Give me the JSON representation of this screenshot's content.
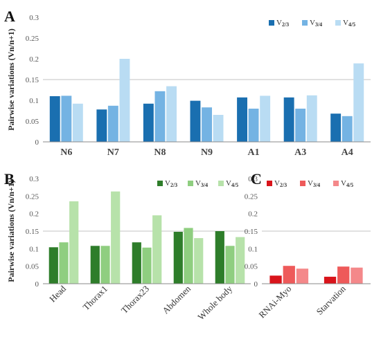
{
  "chart_data": [
    {
      "panel": "A",
      "type": "bar",
      "ylabel": "Pairwise variations (Vn/n+1)",
      "ylim": [
        0,
        0.3
      ],
      "yticks": [
        "0",
        "0.05",
        "0.1",
        "0.15",
        "0.2",
        "0.25",
        "0.3"
      ],
      "threshold": 0.15,
      "categories": [
        "N6",
        "N7",
        "N8",
        "N9",
        "A1",
        "A3",
        "A4"
      ],
      "legend_position": "top-right",
      "series": [
        {
          "name": "V2/3",
          "color": "#1a6fb0",
          "values": [
            0.11,
            0.078,
            0.092,
            0.099,
            0.107,
            0.107,
            0.068
          ]
        },
        {
          "name": "V3/4",
          "color": "#74b3e3",
          "values": [
            0.111,
            0.087,
            0.122,
            0.083,
            0.08,
            0.08,
            0.062
          ]
        },
        {
          "name": "V4/5",
          "color": "#b9dcf3",
          "values": [
            0.092,
            0.2,
            0.134,
            0.065,
            0.111,
            0.112,
            0.189
          ]
        }
      ]
    },
    {
      "panel": "B",
      "type": "bar",
      "ylabel": "Pairwise variations (Vn/n+1)",
      "ylim": [
        0,
        0.3
      ],
      "yticks": [
        "0",
        "0.05",
        "0.1",
        "0.15",
        "0.2",
        "0.25",
        "0.3"
      ],
      "threshold": 0.15,
      "categories": [
        "Head",
        "Thorax1",
        "Thorax23",
        "Abdomen",
        "Whole body"
      ],
      "legend_position": "top-right",
      "series": [
        {
          "name": "V2/3",
          "color": "#2e7d2a",
          "values": [
            0.104,
            0.108,
            0.118,
            0.148,
            0.15
          ]
        },
        {
          "name": "V3/4",
          "color": "#8fce80",
          "values": [
            0.118,
            0.108,
            0.103,
            0.159,
            0.108
          ]
        },
        {
          "name": "V4/5",
          "color": "#b7e2aa",
          "values": [
            0.235,
            0.263,
            0.195,
            0.13,
            0.133
          ]
        }
      ]
    },
    {
      "panel": "C",
      "type": "bar",
      "ylim": [
        0,
        0.3
      ],
      "yticks": [
        "0",
        "0.05",
        "0.1",
        "0.15",
        "0.2",
        "0.25",
        "0.3"
      ],
      "threshold": 0.15,
      "categories": [
        "RNAi-Myo",
        "Starvation"
      ],
      "legend_position": "top",
      "series": [
        {
          "name": "V2/3",
          "color": "#d9141b",
          "values": [
            0.023,
            0.02
          ]
        },
        {
          "name": "V3/4",
          "color": "#ee5a5a",
          "values": [
            0.051,
            0.049
          ]
        },
        {
          "name": "V4/5",
          "color": "#f4888a",
          "values": [
            0.043,
            0.046
          ]
        }
      ]
    }
  ]
}
